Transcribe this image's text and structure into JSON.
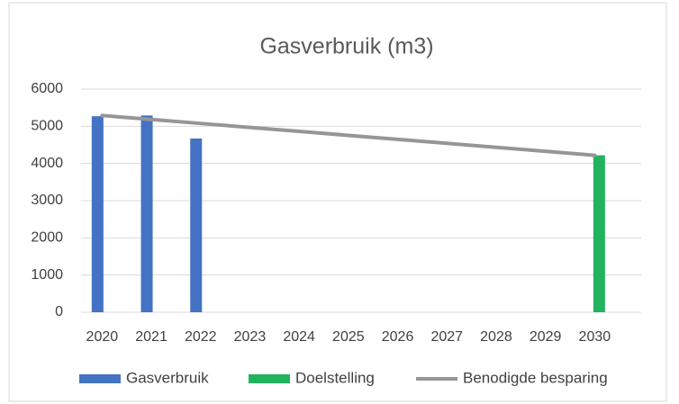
{
  "chart_data": {
    "type": "bar",
    "title": "Gasverbruik (m3)",
    "categories": [
      "2020",
      "2021",
      "2022",
      "2023",
      "2024",
      "2025",
      "2026",
      "2027",
      "2028",
      "2029",
      "2030"
    ],
    "series": [
      {
        "name": "Gasverbruik",
        "type": "bar",
        "color": "#4472c4",
        "values": [
          5270,
          5290,
          4670,
          null,
          null,
          null,
          null,
          null,
          null,
          null,
          null
        ]
      },
      {
        "name": "Doelstelling",
        "type": "bar",
        "color": "#22b35e",
        "values": [
          null,
          null,
          null,
          null,
          null,
          null,
          null,
          null,
          null,
          null,
          4220
        ]
      },
      {
        "name": "Benodigde besparing",
        "type": "line",
        "color": "#969696",
        "values": [
          5290,
          5183,
          5076,
          4969,
          4862,
          4755,
          4648,
          4541,
          4434,
          4327,
          4220
        ]
      }
    ],
    "ylim": [
      0,
      6000
    ],
    "yticks": [
      0,
      1000,
      2000,
      3000,
      4000,
      5000,
      6000
    ],
    "grid": true,
    "legend": "bottom"
  }
}
